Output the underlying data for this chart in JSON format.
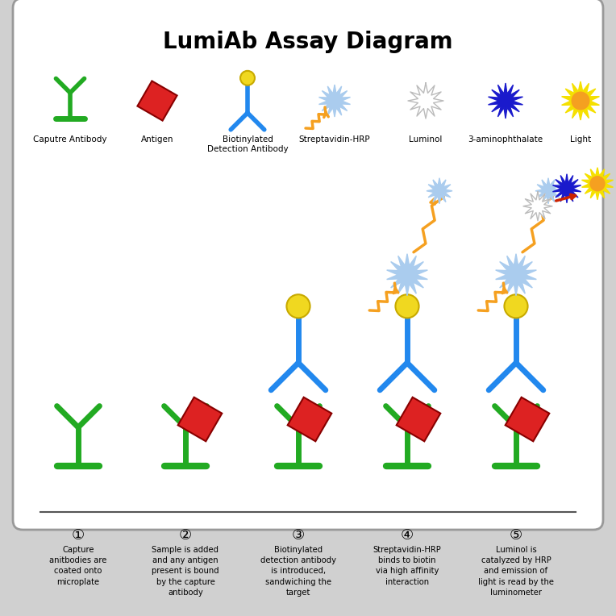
{
  "title": "LumiAb Assay Diagram",
  "title_fontsize": 20,
  "green": "#22aa22",
  "blue": "#2288ee",
  "red": "#dd2222",
  "yellow": "#f0d820",
  "orange": "#f5a020",
  "light_blue": "#aaccee",
  "dark_blue": "#1a1acc",
  "gray": "#bbbbbb",
  "steps": [
    {
      "num": "①",
      "label": "Capture\nanitbodies are\ncoated onto\nmicroplate"
    },
    {
      "num": "②",
      "label": "Sample is added\nand any antigen\npresent is bound\nby the capture\nantibody"
    },
    {
      "num": "③",
      "label": "Biotinylated\ndetection antibody\nis introduced,\nsandwiching the\ntarget"
    },
    {
      "num": "④",
      "label": "Streptavidin-HRP\nbinds to biotin\nvia high affinity\ninteraction"
    },
    {
      "num": "⑤",
      "label": "Luminol is\ncatalyzed by HRP\nand emission of\nlight is read by the\nluminometer"
    }
  ]
}
